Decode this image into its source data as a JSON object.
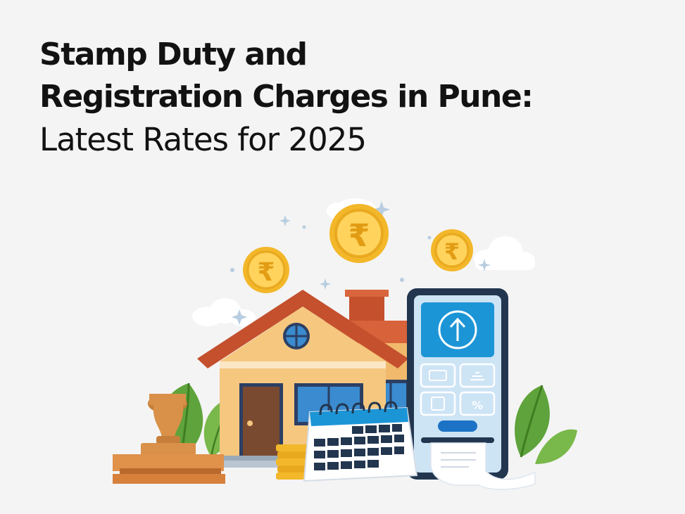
{
  "title": {
    "line1": "Stamp Duty and",
    "line2": "Registration Charges in Pune:",
    "line3": "Latest Rates for 2025"
  },
  "coins": {
    "symbol": "₹"
  },
  "phone_tiles": {
    "percent": "%"
  },
  "colors": {
    "background": "#f4f4f4",
    "coin": "#f6c23a",
    "roof": "#c4502e",
    "wall": "#f5c77f",
    "phone_screen": "#cde4f5",
    "phone_accent": "#1c95d6",
    "leaves": "#5ea33b"
  }
}
